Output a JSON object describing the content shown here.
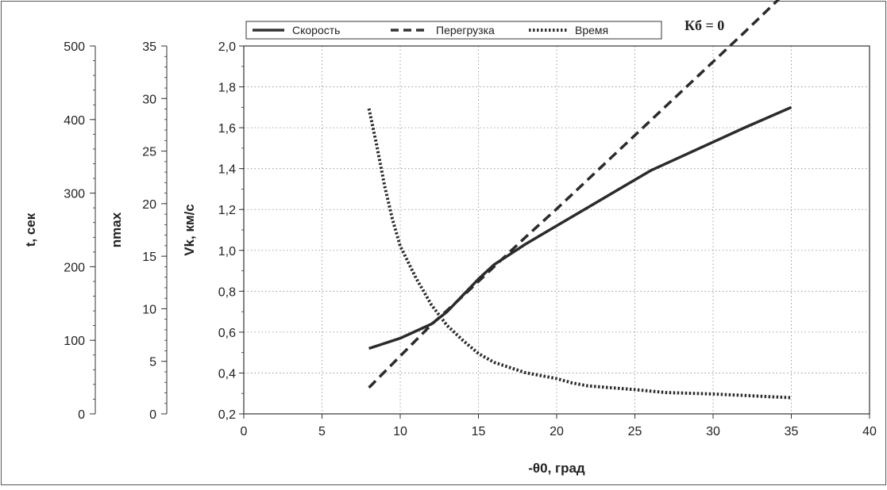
{
  "chart_data": {
    "type": "line",
    "annotation": "Кб = 0",
    "xlabel": "-θ0, град",
    "xlim": [
      0,
      40
    ],
    "x_ticks": [
      "0",
      "5",
      "10",
      "15",
      "20",
      "25",
      "30",
      "35",
      "40"
    ],
    "grid": true,
    "legend_position": "top",
    "y_axes": [
      {
        "label": "Vk, км/с",
        "range": [
          0.2,
          2.0
        ],
        "ticks": [
          "0,2",
          "0,4",
          "0,6",
          "0,8",
          "1,0",
          "1,2",
          "1,4",
          "1,6",
          "1,8",
          "2,0"
        ]
      },
      {
        "label": "nmax",
        "range": [
          0,
          35
        ],
        "ticks": [
          "0",
          "5",
          "10",
          "15",
          "20",
          "25",
          "30",
          "35"
        ]
      },
      {
        "label": "t, сек",
        "range": [
          0,
          500
        ],
        "ticks": [
          "0",
          "100",
          "200",
          "300",
          "400",
          "500"
        ]
      }
    ],
    "series": [
      {
        "name": "Скорость",
        "axis": "Vk, км/с",
        "style": "solid",
        "x": [
          8,
          10,
          12,
          13,
          14,
          15,
          16,
          18,
          20,
          22,
          24,
          26,
          28,
          30,
          32,
          35
        ],
        "y": [
          0.52,
          0.57,
          0.64,
          0.7,
          0.78,
          0.86,
          0.93,
          1.03,
          1.12,
          1.21,
          1.3,
          1.39,
          1.46,
          1.53,
          1.6,
          1.7
        ]
      },
      {
        "name": "Перегрузка",
        "axis": "nmax",
        "style": "dashed",
        "x": [
          8,
          10,
          12,
          14,
          16,
          18,
          20,
          22,
          24,
          26,
          28,
          30,
          32,
          35
        ],
        "y": [
          2.5,
          5.5,
          8.5,
          11.2,
          14.0,
          16.8,
          19.5,
          22.3,
          25.1,
          27.9,
          30.7,
          33.5,
          36.3,
          40.6
        ]
      },
      {
        "name": "Время",
        "axis": "t, сек",
        "style": "dotted",
        "x": [
          8,
          8.5,
          9,
          9.5,
          10,
          11,
          12,
          13,
          14,
          15,
          16,
          18,
          20,
          21,
          22,
          25,
          27,
          30,
          33,
          35
        ],
        "y": [
          415,
          365,
          310,
          265,
          228,
          185,
          148,
          120,
          100,
          82,
          70,
          56,
          48,
          42,
          38,
          33,
          29,
          27,
          24,
          22
        ]
      }
    ]
  }
}
